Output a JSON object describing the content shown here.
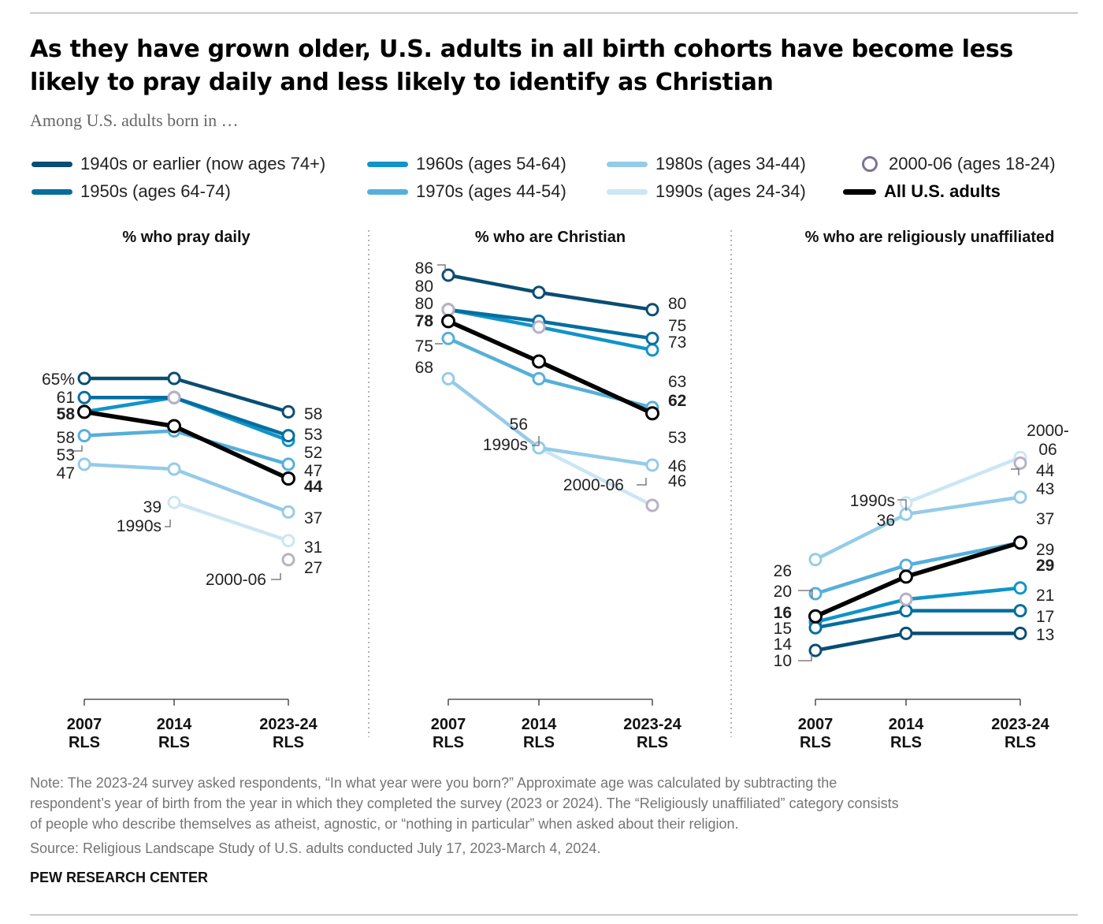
{
  "title": "As they have grown older, U.S. adults in all birth cohorts have become less likely to pray daily and less likely to identify as Christian",
  "subtitle": "Among U.S. adults born in …",
  "legend": [
    {
      "label": "1940s or earlier (now ages 74+)",
      "color": "#0a4d73",
      "style": "line"
    },
    {
      "label": "1950s (ages 64-74)",
      "color": "#066e9e",
      "style": "line"
    },
    {
      "label": "1960s (ages 54-64)",
      "color": "#1094c9",
      "style": "line"
    },
    {
      "label": "1970s (ages 44-54)",
      "color": "#56afda",
      "style": "line"
    },
    {
      "label": "1980s (ages 34-44)",
      "color": "#95cbe8",
      "style": "line"
    },
    {
      "label": "1990s (ages 24-34)",
      "color": "#cbe6f4",
      "style": "line"
    },
    {
      "label": "2000-06 (ages 18-24)",
      "color": "#7d7490",
      "style": "marker"
    },
    {
      "label": "All U.S. adults",
      "color": "#000000",
      "style": "line-bold"
    }
  ],
  "chart_data": [
    {
      "type": "line",
      "title": "% who pray daily",
      "categories": [
        "2007 RLS",
        "2014 RLS",
        "2023-24 RLS"
      ],
      "series": [
        {
          "name": "1940s or earlier (now ages 74+)",
          "values": [
            65,
            65,
            58
          ]
        },
        {
          "name": "1950s (ages 64-74)",
          "values": [
            61,
            61,
            53
          ]
        },
        {
          "name": "1960s (ages 54-64)",
          "values": [
            58,
            61,
            52
          ]
        },
        {
          "name": "1970s (ages 44-54)",
          "values": [
            53,
            54,
            47
          ]
        },
        {
          "name": "1980s (ages 34-44)",
          "values": [
            47,
            46,
            37
          ]
        },
        {
          "name": "1990s (ages 24-34)",
          "values": [
            null,
            39,
            31
          ]
        },
        {
          "name": "2000-06 (ages 18-24)",
          "values": [
            null,
            61,
            27
          ]
        },
        {
          "name": "All U.S. adults",
          "values": [
            58,
            55,
            44
          ]
        }
      ],
      "labels_left": [
        "65%",
        "61",
        "58",
        "58",
        "53",
        "47"
      ],
      "labels_right": [
        "58",
        "53",
        "52",
        "47",
        "44",
        "37",
        "31",
        "27"
      ],
      "annotations": [
        "39",
        "1990s",
        "2000-06"
      ]
    },
    {
      "type": "line",
      "title": "% who are Christian",
      "categories": [
        "2007 RLS",
        "2014 RLS",
        "2023-24 RLS"
      ],
      "series": [
        {
          "name": "1940s or earlier (now ages 74+)",
          "values": [
            86,
            83,
            80
          ]
        },
        {
          "name": "1950s (ages 64-74)",
          "values": [
            80,
            78,
            75
          ]
        },
        {
          "name": "1960s (ages 54-64)",
          "values": [
            80,
            77,
            73
          ]
        },
        {
          "name": "1970s (ages 44-54)",
          "values": [
            75,
            68,
            63
          ]
        },
        {
          "name": "1980s (ages 34-44)",
          "values": [
            68,
            56,
            53
          ]
        },
        {
          "name": "1990s (ages 24-34)",
          "values": [
            null,
            56,
            46
          ]
        },
        {
          "name": "2000-06 (ages 18-24)",
          "values": [
            80,
            77,
            46
          ]
        },
        {
          "name": "All U.S. adults",
          "values": [
            78,
            71,
            62
          ]
        }
      ],
      "labels_left": [
        "86",
        "80",
        "80",
        "78",
        "75",
        "68"
      ],
      "labels_right": [
        "80",
        "75",
        "73",
        "63",
        "62",
        "53",
        "46",
        "46"
      ],
      "annotations": [
        "56",
        "1990s",
        "2000-06"
      ]
    },
    {
      "type": "line",
      "title": "% who are religiously unaffiliated",
      "categories": [
        "2007 RLS",
        "2014 RLS",
        "2023-24 RLS"
      ],
      "series": [
        {
          "name": "1940s or earlier (now ages 74+)",
          "values": [
            10,
            13,
            13
          ]
        },
        {
          "name": "1950s (ages 64-74)",
          "values": [
            14,
            17,
            17
          ]
        },
        {
          "name": "1960s (ages 54-64)",
          "values": [
            15,
            19,
            21
          ]
        },
        {
          "name": "1970s (ages 44-54)",
          "values": [
            20,
            25,
            29
          ]
        },
        {
          "name": "1980s (ages 34-44)",
          "values": [
            26,
            34,
            37
          ]
        },
        {
          "name": "1990s (ages 24-34)",
          "values": [
            null,
            36,
            44
          ]
        },
        {
          "name": "2000-06 (ages 18-24)",
          "values": [
            16,
            19,
            43
          ]
        },
        {
          "name": "All U.S. adults",
          "values": [
            16,
            23,
            29
          ]
        }
      ],
      "labels_left": [
        "26",
        "20",
        "16",
        "15",
        "14",
        "10"
      ],
      "labels_right": [
        "44",
        "43",
        "37",
        "29",
        "29",
        "21",
        "17",
        "13"
      ],
      "annotations": [
        "1990s",
        "36",
        "2000-06"
      ]
    }
  ],
  "note": [
    "Note: The 2023-24 survey asked respondents, “In what year were you born?” Approximate age was calculated by subtracting the",
    "respondent’s year of birth from the year in which they completed the survey (2023 or 2024). The “Religiously unaffiliated” category consists",
    "of people who describe themselves as atheist, agnostic, or “nothing in particular” when asked about their religion."
  ],
  "source": "Source: Religious Landscape Study of U.S. adults conducted July 17, 2023-March 4, 2024.",
  "brand": "PEW RESEARCH CENTER"
}
